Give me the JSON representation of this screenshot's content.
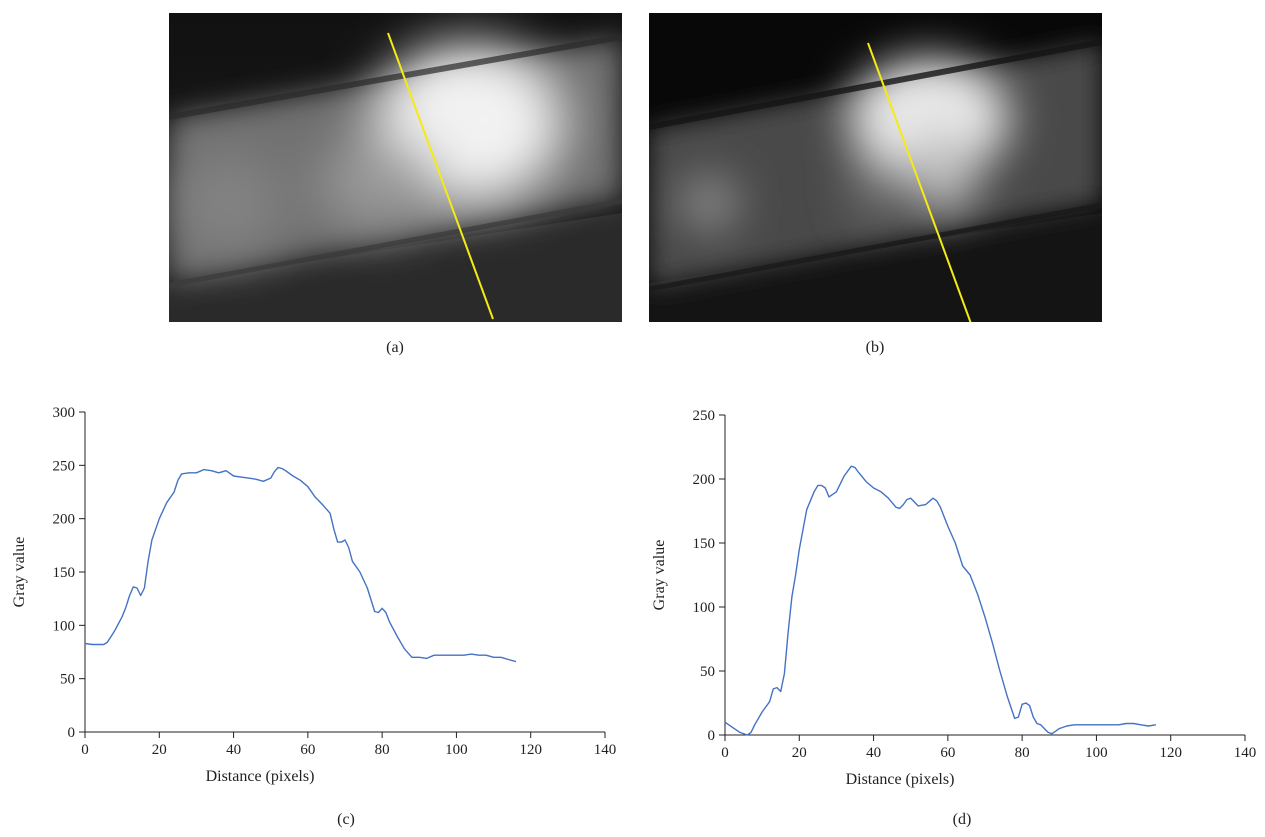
{
  "panels": {
    "a": {
      "caption": "(a)"
    },
    "b": {
      "caption": "(b)"
    },
    "c": {
      "caption": "(c)"
    },
    "d": {
      "caption": "(d)"
    }
  },
  "colors": {
    "line": "#4472c4",
    "profile_line": "#f5ea14",
    "axis": "#231f20"
  },
  "chart_data": [
    {
      "type": "line",
      "panel": "c",
      "title": "",
      "xlabel": "Distance (pixels)",
      "ylabel": "Gray value",
      "xlim": [
        0,
        140
      ],
      "ylim": [
        0,
        300
      ],
      "xticks": [
        0,
        20,
        40,
        60,
        80,
        100,
        120,
        140
      ],
      "yticks": [
        0,
        50,
        100,
        150,
        200,
        250,
        300
      ],
      "x": [
        0,
        2,
        4,
        5,
        6,
        8,
        10,
        11,
        12,
        13,
        14,
        15,
        16,
        17,
        18,
        19,
        20,
        22,
        24,
        25,
        26,
        28,
        30,
        32,
        34,
        36,
        38,
        40,
        42,
        44,
        46,
        48,
        50,
        51,
        52,
        53,
        54,
        56,
        58,
        60,
        62,
        64,
        66,
        67,
        68,
        69,
        70,
        71,
        72,
        74,
        76,
        78,
        79,
        80,
        81,
        82,
        84,
        86,
        88,
        90,
        92,
        94,
        96,
        98,
        100,
        102,
        104,
        106,
        108,
        110,
        112,
        114,
        116
      ],
      "y": [
        83,
        82,
        82,
        82,
        84,
        95,
        108,
        117,
        128,
        136,
        135,
        128,
        135,
        160,
        180,
        190,
        200,
        215,
        225,
        236,
        242,
        243,
        243,
        246,
        245,
        243,
        245,
        240,
        239,
        238,
        237,
        235,
        238,
        244,
        248,
        247,
        245,
        240,
        236,
        230,
        220,
        213,
        205,
        190,
        178,
        178,
        180,
        173,
        160,
        150,
        135,
        113,
        112,
        116,
        112,
        103,
        90,
        78,
        70,
        70,
        69,
        72,
        72,
        72,
        72,
        72,
        73,
        72,
        72,
        70,
        70,
        68,
        66
      ]
    },
    {
      "type": "line",
      "panel": "d",
      "title": "",
      "xlabel": "Distance (pixels)",
      "ylabel": "Gray value",
      "xlim": [
        0,
        140
      ],
      "ylim": [
        0,
        250
      ],
      "xticks": [
        0,
        20,
        40,
        60,
        80,
        100,
        120,
        140
      ],
      "yticks": [
        0,
        50,
        100,
        150,
        200,
        250
      ],
      "x": [
        0,
        2,
        4,
        6,
        7,
        8,
        10,
        12,
        13,
        14,
        15,
        16,
        17,
        18,
        19,
        20,
        22,
        24,
        25,
        26,
        27,
        28,
        30,
        32,
        34,
        35,
        36,
        38,
        40,
        42,
        44,
        46,
        47,
        48,
        49,
        50,
        51,
        52,
        54,
        56,
        57,
        58,
        60,
        62,
        64,
        66,
        68,
        70,
        72,
        74,
        76,
        78,
        79,
        80,
        81,
        82,
        83,
        84,
        85,
        86,
        87,
        88,
        89,
        90,
        92,
        94,
        96,
        98,
        100,
        102,
        104,
        106,
        108,
        110,
        112,
        114,
        116
      ],
      "y": [
        10,
        6,
        2,
        0,
        2,
        8,
        18,
        26,
        36,
        37,
        34,
        48,
        80,
        108,
        125,
        145,
        176,
        190,
        195,
        195,
        193,
        186,
        190,
        202,
        210,
        209,
        205,
        198,
        193,
        190,
        185,
        178,
        177,
        180,
        184,
        185,
        182,
        179,
        180,
        185,
        183,
        178,
        163,
        150,
        132,
        125,
        110,
        92,
        72,
        50,
        30,
        13,
        14,
        24,
        25,
        23,
        14,
        9,
        8,
        5,
        2,
        1,
        3,
        5,
        7,
        8,
        8,
        8,
        8,
        8,
        8,
        8,
        9,
        9,
        8,
        7,
        8
      ]
    }
  ]
}
